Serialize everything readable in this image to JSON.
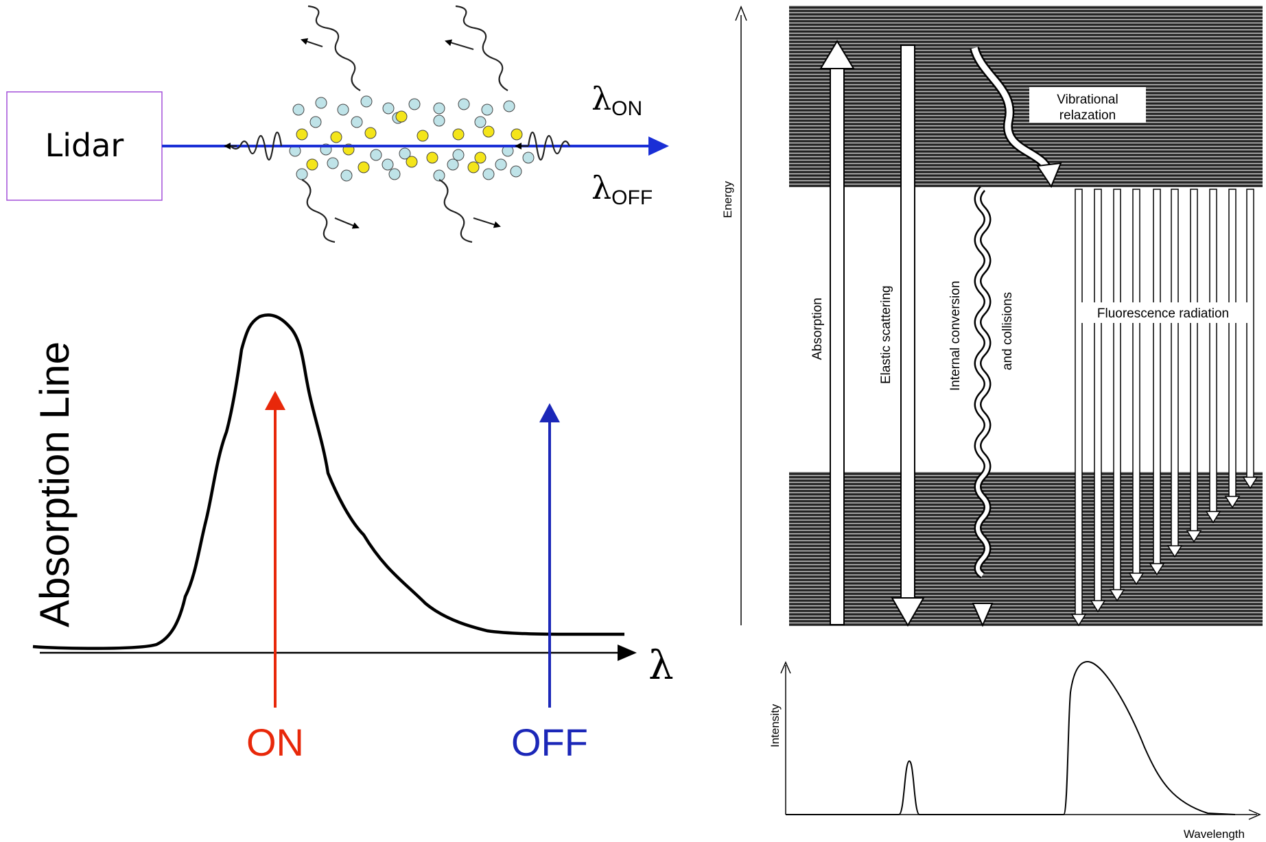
{
  "lidar_panel": {
    "box_label": "Lidar",
    "lambda_on": {
      "symbol": "λ",
      "subscript": "ON"
    },
    "lambda_off": {
      "symbol": "λ",
      "subscript": "OFF"
    },
    "colors": {
      "beam": "#1a2fd6",
      "box_border": "#a24fd8",
      "molecule_light": "#bfe3e8",
      "molecule_yellow": "#f4e51a"
    }
  },
  "absorption_panel": {
    "ylabel": "Absorption Line",
    "axis_symbol": "λ",
    "on_label": "ON",
    "off_label": "OFF",
    "colors": {
      "on": "#e8280a",
      "off": "#1b27b8"
    }
  },
  "energy_panel": {
    "axis_label": "Energy",
    "absorption_label": "Absorption",
    "elastic_label": "Elastic scattering",
    "internal_label": "Internal conversion",
    "collisions_label": "and collisions",
    "vibrational_label_line1": "Vibrational",
    "vibrational_label_line2": "relazation",
    "fluorescence_label": "Fluorescence radiation"
  },
  "spectrum_panel": {
    "ylabel": "Intensity",
    "xlabel": "Wavelength"
  }
}
